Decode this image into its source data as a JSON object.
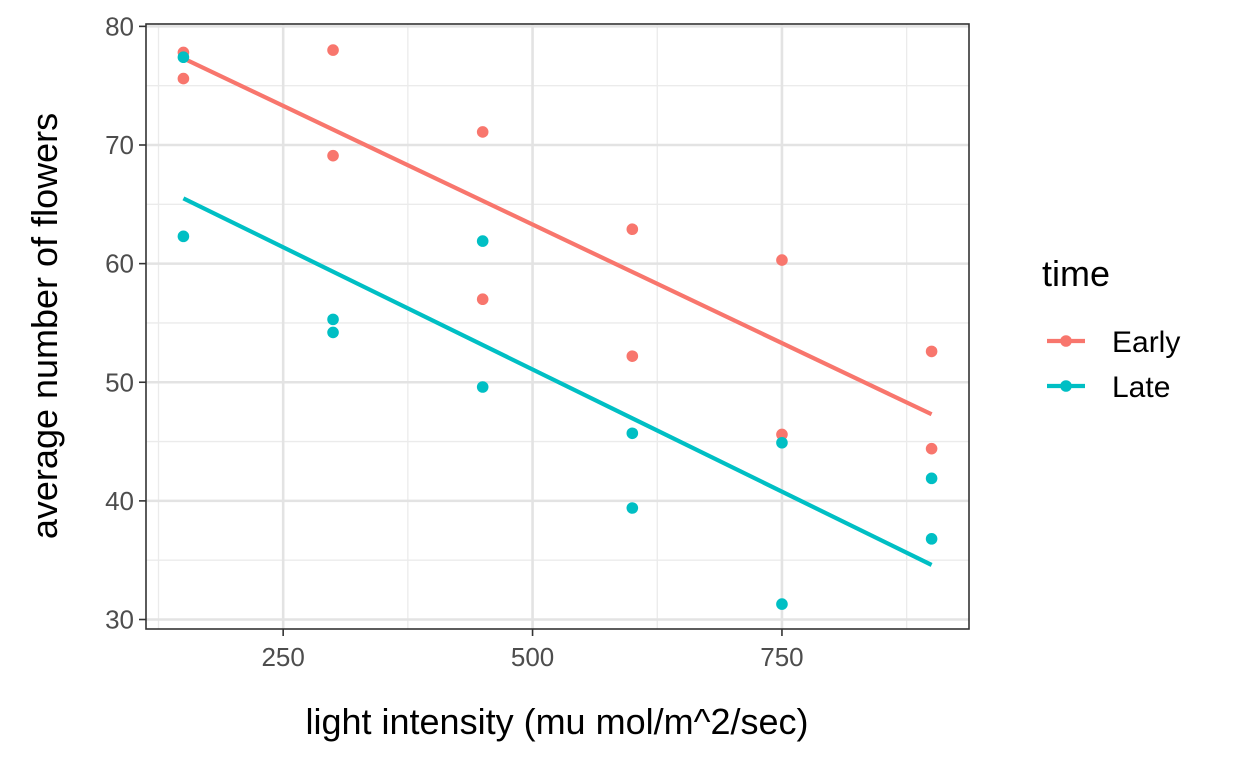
{
  "chart_data": {
    "type": "scatter",
    "title": "",
    "xlabel": "light intensity (mu mol/m^2/sec)",
    "ylabel": "average number of flowers",
    "xlim": [
      112.5,
      937.5
    ],
    "ylim": [
      29.2,
      80.2
    ],
    "x_ticks": [
      250,
      500,
      750
    ],
    "y_ticks": [
      30,
      40,
      50,
      60,
      70,
      80
    ],
    "grid": true,
    "legend": {
      "title": "time",
      "position": "right"
    },
    "series": [
      {
        "name": "Early",
        "color": "#F8766D",
        "points": [
          {
            "x": 150,
            "y": 77.8
          },
          {
            "x": 150,
            "y": 75.6
          },
          {
            "x": 300,
            "y": 78.0
          },
          {
            "x": 300,
            "y": 69.1
          },
          {
            "x": 450,
            "y": 71.1
          },
          {
            "x": 450,
            "y": 57.0
          },
          {
            "x": 600,
            "y": 62.9
          },
          {
            "x": 600,
            "y": 52.2
          },
          {
            "x": 750,
            "y": 60.3
          },
          {
            "x": 750,
            "y": 45.6
          },
          {
            "x": 900,
            "y": 52.6
          },
          {
            "x": 900,
            "y": 44.4
          }
        ],
        "fit_line": [
          {
            "x": 150,
            "y": 77.3
          },
          {
            "x": 900,
            "y": 47.3
          }
        ]
      },
      {
        "name": "Late",
        "color": "#00BFC4",
        "points": [
          {
            "x": 150,
            "y": 77.4
          },
          {
            "x": 150,
            "y": 62.3
          },
          {
            "x": 300,
            "y": 55.3
          },
          {
            "x": 300,
            "y": 54.2
          },
          {
            "x": 450,
            "y": 61.9
          },
          {
            "x": 450,
            "y": 49.6
          },
          {
            "x": 600,
            "y": 45.7
          },
          {
            "x": 600,
            "y": 39.4
          },
          {
            "x": 750,
            "y": 44.9
          },
          {
            "x": 750,
            "y": 31.3
          },
          {
            "x": 900,
            "y": 41.9
          },
          {
            "x": 900,
            "y": 36.8
          }
        ],
        "fit_line": [
          {
            "x": 150,
            "y": 65.5
          },
          {
            "x": 900,
            "y": 34.6
          }
        ]
      }
    ]
  }
}
